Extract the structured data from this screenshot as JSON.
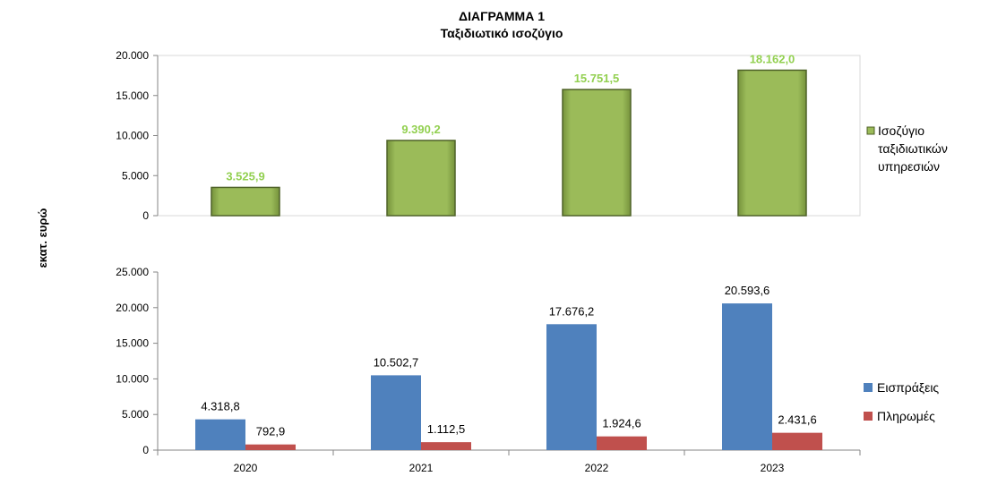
{
  "title_line1": "ΔΙΑΓΡΑΜΜΑ 1",
  "title_line2": "Ταξιδιωτικό ισοζύγιο",
  "y_axis_label": "εκατ. ευρώ",
  "colors": {
    "balance": "#9BBB59",
    "balance_label": "#92D050",
    "receipts": "#4F81BD",
    "payments": "#C0504D"
  },
  "chart_data": [
    {
      "type": "bar",
      "categories": [
        "2020",
        "2021",
        "2022",
        "2023"
      ],
      "series": [
        {
          "name": "Ισοζύγιο ταξιδιωτικών υπηρεσιών",
          "values": [
            3525.9,
            9390.2,
            15751.5,
            18162.0
          ]
        }
      ],
      "data_labels": [
        "3.525,9",
        "9.390,2",
        "15.751,5",
        "18.162,0"
      ],
      "legend_lines": [
        "Ισοζύγιο",
        "ταξιδιωτικών",
        "υπηρεσιών"
      ],
      "ylim": [
        0,
        20000
      ],
      "y_ticks": [
        0,
        5000,
        10000,
        15000,
        20000
      ],
      "y_tick_labels": [
        "0",
        "5.000",
        "10.000",
        "15.000",
        "20.000"
      ],
      "legend_position": "right",
      "grid": false
    },
    {
      "type": "bar",
      "categories": [
        "2020",
        "2021",
        "2022",
        "2023"
      ],
      "series": [
        {
          "name": "Εισπράξεις",
          "values": [
            4318.8,
            10502.7,
            17676.2,
            20593.6
          ],
          "labels": [
            "4.318,8",
            "10.502,7",
            "17.676,2",
            "20.593,6"
          ]
        },
        {
          "name": "Πληρωμές",
          "values": [
            792.9,
            1112.5,
            1924.6,
            2431.6
          ],
          "labels": [
            "792,9",
            "1.112,5",
            "1.924,6",
            "2.431,6"
          ]
        }
      ],
      "ylim": [
        0,
        25000
      ],
      "y_ticks": [
        0,
        5000,
        10000,
        15000,
        20000,
        25000
      ],
      "y_tick_labels": [
        "0",
        "5.000",
        "10.000",
        "15.000",
        "20.000",
        "25.000"
      ],
      "legend_position": "right",
      "grid": false
    }
  ]
}
